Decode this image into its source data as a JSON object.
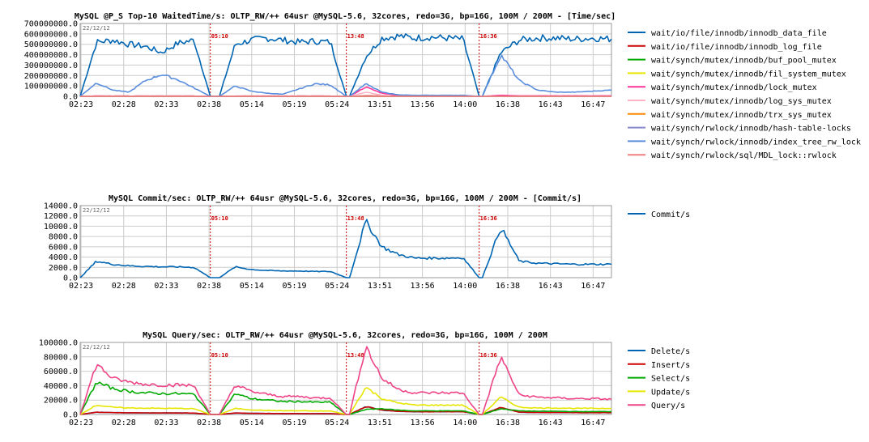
{
  "chart_data": [
    {
      "type": "line",
      "title": "MySQL @P_S Top-10 WaitedTime/s: OLTP_RW/++ 64usr @MySQL-5.6, 32cores, redo=3G, bp=16G, 100M / 200M - [Time/sec]",
      "date_label": "22/12/12",
      "x_tick_labels": [
        "02:23",
        "02:28",
        "02:33",
        "02:38",
        "05:14",
        "05:19",
        "05:24",
        "13:51",
        "13:56",
        "14:00",
        "16:38",
        "16:43",
        "16:47"
      ],
      "y_tick_labels": [
        "0.0",
        "100000000.0",
        "200000000.0",
        "300000000.0",
        "400000000.0",
        "500000000.0",
        "600000000.0",
        "700000000.0"
      ],
      "ylim": [
        0,
        700000000
      ],
      "markers": [
        {
          "label": "05:10",
          "pos": 0.245
        },
        {
          "label": "13:48",
          "pos": 0.501
        },
        {
          "label": "16:36",
          "pos": 0.751
        }
      ],
      "segments": [
        [
          0.0,
          0.245
        ],
        [
          0.262,
          0.501
        ],
        [
          0.507,
          0.751
        ],
        [
          0.757,
          1.0
        ]
      ],
      "series": [
        {
          "name": "wait/io/file/innodb/innodb_data_file",
          "color": "#0066b3",
          "segments": [
            [
              0,
              520000000,
              540000000,
              500000000,
              480000000,
              420000000,
              510000000,
              540000000,
              0
            ],
            [
              0,
              500000000,
              540000000,
              560000000,
              540000000,
              520000000,
              530000000,
              520000000,
              0
            ],
            [
              0,
              380000000,
              560000000,
              580000000,
              560000000,
              570000000,
              560000000,
              550000000,
              0
            ],
            [
              0,
              420000000,
              540000000,
              560000000,
              560000000,
              550000000,
              560000000,
              550000000
            ]
          ]
        },
        {
          "name": "wait/io/file/innodb/innodb_log_file",
          "color": "#cc0000",
          "segments": [
            [
              0,
              2000000,
              2000000,
              2000000,
              2000000,
              2000000,
              2000000,
              2000000,
              0
            ],
            [
              0,
              2000000,
              2000000,
              2000000,
              2000000,
              2000000,
              2000000,
              2000000,
              0
            ],
            [
              0,
              5000000,
              3000000,
              2000000,
              2000000,
              2000000,
              2000000,
              2000000,
              0
            ],
            [
              0,
              3000000,
              2000000,
              2000000,
              2000000,
              2000000,
              2000000,
              2000000
            ]
          ]
        },
        {
          "name": "wait/synch/mutex/innodb/buf_pool_mutex",
          "color": "#00aa00",
          "segments": [
            [
              0,
              0,
              0,
              0,
              0,
              0,
              0,
              0,
              0
            ],
            [
              0,
              0,
              0,
              0,
              0,
              0,
              0,
              0,
              0
            ],
            [
              0,
              0,
              0,
              0,
              0,
              0,
              0,
              0,
              0
            ],
            [
              0,
              0,
              0,
              0,
              0,
              0,
              0,
              0
            ]
          ]
        },
        {
          "name": "wait/synch/mutex/innodb/fil_system_mutex",
          "color": "#e6e600",
          "segments": [
            [
              0,
              0,
              0,
              0,
              0,
              0,
              0,
              0,
              0
            ],
            [
              0,
              0,
              0,
              0,
              0,
              0,
              0,
              0,
              0
            ],
            [
              0,
              0,
              0,
              0,
              0,
              0,
              0,
              0,
              0
            ],
            [
              0,
              0,
              0,
              0,
              0,
              0,
              0,
              0
            ]
          ]
        },
        {
          "name": "wait/synch/mutex/innodb/lock_mutex",
          "color": "#ff3399",
          "segments": [
            [
              0,
              3000000,
              2000000,
              2000000,
              2000000,
              2000000,
              2000000,
              2000000,
              0
            ],
            [
              0,
              2000000,
              2000000,
              2000000,
              2000000,
              2000000,
              2000000,
              2000000,
              0
            ],
            [
              0,
              90000000,
              30000000,
              10000000,
              5000000,
              5000000,
              5000000,
              5000000,
              0
            ],
            [
              0,
              10000000,
              5000000,
              5000000,
              5000000,
              5000000,
              5000000,
              5000000
            ]
          ]
        },
        {
          "name": "wait/synch/mutex/innodb/log_sys_mutex",
          "color": "#ffb3c6",
          "segments": [
            [
              0,
              0,
              0,
              0,
              0,
              0,
              0,
              0,
              0
            ],
            [
              0,
              0,
              0,
              0,
              0,
              0,
              0,
              0,
              0
            ],
            [
              0,
              40000000,
              10000000,
              0,
              0,
              0,
              0,
              0,
              0
            ],
            [
              0,
              0,
              0,
              0,
              0,
              0,
              0,
              0
            ]
          ]
        },
        {
          "name": "wait/synch/mutex/innodb/trx_sys_mutex",
          "color": "#ff8800",
          "segments": [
            [
              0,
              0,
              0,
              0,
              0,
              0,
              0,
              0,
              0
            ],
            [
              0,
              0,
              0,
              0,
              0,
              0,
              0,
              0,
              0
            ],
            [
              0,
              0,
              0,
              0,
              0,
              0,
              0,
              0,
              0
            ],
            [
              0,
              0,
              0,
              0,
              0,
              0,
              0,
              0
            ]
          ]
        },
        {
          "name": "wait/synch/rwlock/innodb/hash-table-locks",
          "color": "#8888cc",
          "segments": [
            [
              0,
              0,
              0,
              0,
              0,
              0,
              0,
              0,
              0
            ],
            [
              0,
              0,
              0,
              0,
              0,
              0,
              0,
              0,
              0
            ],
            [
              0,
              0,
              0,
              0,
              0,
              0,
              0,
              0,
              0
            ],
            [
              0,
              0,
              0,
              0,
              0,
              0,
              0,
              0
            ]
          ]
        },
        {
          "name": "wait/synch/rwlock/innodb/index_tree_rw_lock",
          "color": "#5b8fde",
          "segments": [
            [
              0,
              130000000,
              60000000,
              40000000,
              150000000,
              210000000,
              160000000,
              80000000,
              0
            ],
            [
              0,
              100000000,
              50000000,
              30000000,
              20000000,
              70000000,
              120000000,
              110000000,
              0
            ],
            [
              0,
              120000000,
              40000000,
              15000000,
              10000000,
              10000000,
              10000000,
              10000000,
              0
            ],
            [
              0,
              400000000,
              150000000,
              60000000,
              40000000,
              40000000,
              50000000,
              60000000
            ]
          ]
        },
        {
          "name": "wait/synch/rwlock/sql/MDL_lock::rwlock",
          "color": "#f08080",
          "segments": [
            [
              0,
              1000000,
              1000000,
              1000000,
              1000000,
              1000000,
              1000000,
              1000000,
              0
            ],
            [
              0,
              1000000,
              1000000,
              1000000,
              1000000,
              1000000,
              1000000,
              1000000,
              0
            ],
            [
              0,
              1000000,
              1000000,
              1000000,
              1000000,
              1000000,
              1000000,
              1000000,
              0
            ],
            [
              0,
              1000000,
              1000000,
              1000000,
              1000000,
              1000000,
              1000000,
              1000000
            ]
          ]
        }
      ]
    },
    {
      "type": "line",
      "title": "MySQL Commit/sec: OLTP_RW/++ 64usr @MySQL-5.6, 32cores, redo=3G, bp=16G, 100M / 200M - [Commit/s]",
      "date_label": "22/12/12",
      "x_tick_labels": [
        "02:23",
        "02:28",
        "02:33",
        "02:38",
        "05:14",
        "05:19",
        "05:24",
        "13:51",
        "13:56",
        "14:00",
        "16:38",
        "16:43",
        "16:47"
      ],
      "y_tick_labels": [
        "0.0",
        "2000.0",
        "4000.0",
        "6000.0",
        "8000.0",
        "10000.0",
        "12000.0",
        "14000.0"
      ],
      "ylim": [
        0,
        14000
      ],
      "markers": [
        {
          "label": "05:10",
          "pos": 0.245
        },
        {
          "label": "13:48",
          "pos": 0.501
        },
        {
          "label": "16:36",
          "pos": 0.751
        }
      ],
      "segments": [
        [
          0.0,
          0.245
        ],
        [
          0.262,
          0.501
        ],
        [
          0.507,
          0.751
        ],
        [
          0.757,
          1.0
        ]
      ],
      "series": [
        {
          "name": "Commit/s",
          "color": "#0066b3",
          "segments": [
            [
              0,
              3200,
              2600,
              2300,
              2200,
              2100,
              2100,
              2000,
              0
            ],
            [
              0,
              2100,
              1600,
              1400,
              1300,
              1300,
              1200,
              1200,
              0
            ],
            [
              0,
              11000,
              6000,
              4500,
              3800,
              3800,
              3800,
              3900,
              0
            ],
            [
              0,
              9800,
              3200,
              2800,
              2700,
              2600,
              2600,
              2600
            ]
          ]
        }
      ]
    },
    {
      "type": "line",
      "title": "MySQL Query/sec: OLTP_RW/++ 64usr @MySQL-5.6, 32cores, redo=3G, bp=16G, 100M / 200M",
      "date_label": "22/12/12",
      "x_tick_labels": [
        "02:23",
        "02:28",
        "02:33",
        "02:38",
        "05:14",
        "05:19",
        "05:24",
        "13:51",
        "13:56",
        "14:00",
        "16:38",
        "16:43",
        "16:47"
      ],
      "y_tick_labels": [
        "0.0",
        "20000.0",
        "40000.0",
        "60000.0",
        "80000.0",
        "100000.0"
      ],
      "ylim": [
        0,
        100000
      ],
      "markers": [
        {
          "label": "05:10",
          "pos": 0.245
        },
        {
          "label": "13:48",
          "pos": 0.501
        },
        {
          "label": "16:36",
          "pos": 0.751
        }
      ],
      "segments": [
        [
          0.0,
          0.245
        ],
        [
          0.262,
          0.501
        ],
        [
          0.507,
          0.751
        ],
        [
          0.757,
          1.0
        ]
      ],
      "series": [
        {
          "name": "Delete/s",
          "color": "#0066b3",
          "segments": [
            [
              0,
              3200,
              2600,
              2300,
              2200,
              2100,
              2100,
              2000,
              0
            ],
            [
              0,
              2100,
              1600,
              1400,
              1300,
              1300,
              1200,
              1200,
              0
            ],
            [
              0,
              11000,
              6000,
              4500,
              3800,
              3800,
              3800,
              3900,
              0
            ],
            [
              0,
              9800,
              3200,
              2800,
              2700,
              2600,
              2600,
              2600
            ]
          ]
        },
        {
          "name": "Insert/s",
          "color": "#cc0000",
          "segments": [
            [
              0,
              3200,
              2600,
              2300,
              2200,
              2100,
              2100,
              2000,
              0
            ],
            [
              0,
              2100,
              1600,
              1400,
              1300,
              1300,
              1200,
              1200,
              0
            ],
            [
              0,
              11000,
              6000,
              4500,
              3800,
              3800,
              3800,
              3900,
              0
            ],
            [
              0,
              9800,
              3200,
              2800,
              2700,
              2600,
              2600,
              2600
            ]
          ]
        },
        {
          "name": "Select/s",
          "color": "#00aa00",
          "segments": [
            [
              0,
              45000,
              36000,
              32000,
              30000,
              29000,
              29000,
              28000,
              0
            ],
            [
              0,
              29000,
              22000,
              20000,
              18000,
              18000,
              17000,
              17000,
              0
            ],
            [
              0,
              7000,
              8000,
              6000,
              5000,
              5000,
              5000,
              5000,
              0
            ],
            [
              0,
              8000,
              5000,
              4500,
              4500,
              4000,
              4000,
              4000
            ]
          ]
        },
        {
          "name": "Update/s",
          "color": "#e6e600",
          "segments": [
            [
              0,
              13000,
              10000,
              9000,
              8800,
              8500,
              8400,
              8000,
              0
            ],
            [
              0,
              8400,
              6400,
              5600,
              5200,
              5200,
              4800,
              4800,
              0
            ],
            [
              0,
              38000,
              22000,
              16000,
              13000,
              13000,
              13000,
              13000,
              0
            ],
            [
              0,
              24000,
              10000,
              9000,
              9000,
              8500,
              8500,
              8500
            ]
          ]
        },
        {
          "name": "Query/s",
          "color": "#ee4488",
          "segments": [
            [
              0,
              70000,
              50000,
              45000,
              42000,
              41000,
              41000,
              40000,
              0
            ],
            [
              0,
              41000,
              32000,
              28000,
              25000,
              25000,
              23000,
              23000,
              0
            ],
            [
              0,
              95000,
              50000,
              35000,
              30000,
              30000,
              30000,
              30000,
              0
            ],
            [
              0,
              80000,
              27000,
              24000,
              23000,
              22000,
              22000,
              21000
            ]
          ]
        }
      ]
    }
  ]
}
